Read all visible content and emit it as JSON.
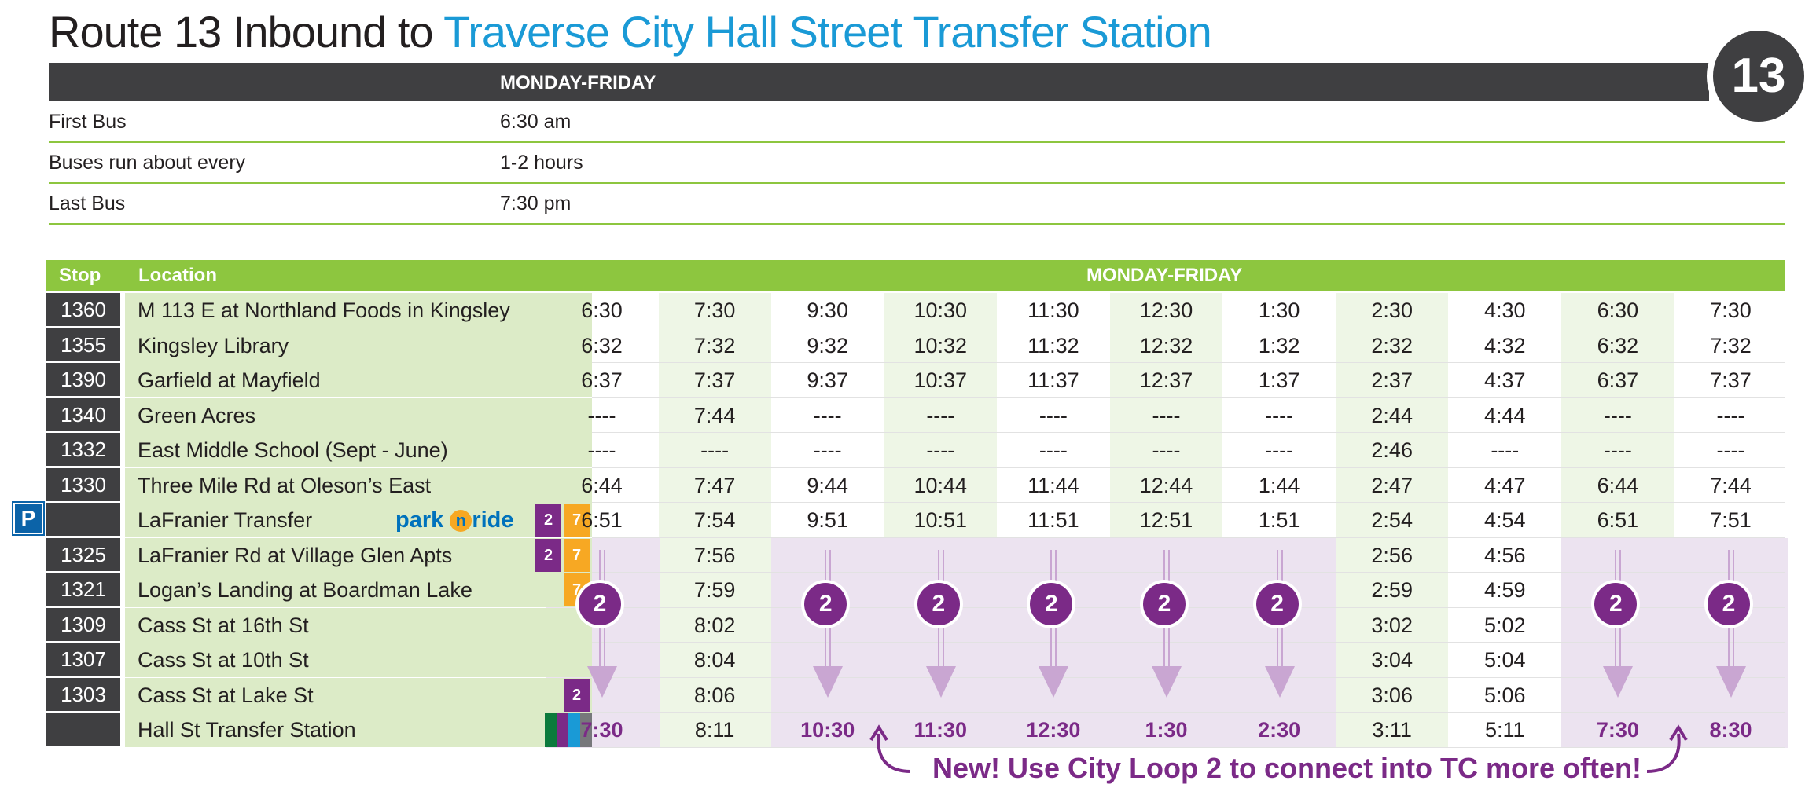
{
  "title": {
    "route": "Route 13 Inbound to ",
    "destination": "Traverse City Hall Street Transfer Station"
  },
  "route_badge": "13",
  "summary": {
    "header": "MONDAY-FRIDAY",
    "rows": [
      {
        "label": "First Bus",
        "value": "6:30 am"
      },
      {
        "label": "Buses run about every",
        "value": "1-2 hours"
      },
      {
        "label": "Last Bus",
        "value": "7:30 pm"
      }
    ]
  },
  "schedule": {
    "headers": {
      "stop": "Stop",
      "location": "Location",
      "days": "MONDAY-FRIDAY"
    },
    "parking_icon": "P",
    "park_n_ride_text": {
      "a": "park ",
      "o": "n",
      "b": "ride"
    },
    "loop_label": "2",
    "rows": [
      {
        "stop": "1360",
        "location": "M 113 E at Northland Foods in Kingsley",
        "times": [
          "6:30",
          "7:30",
          "9:30",
          "10:30",
          "11:30",
          "12:30",
          "1:30",
          "2:30",
          "4:30",
          "6:30",
          "7:30"
        ]
      },
      {
        "stop": "1355",
        "location": "Kingsley Library",
        "times": [
          "6:32",
          "7:32",
          "9:32",
          "10:32",
          "11:32",
          "12:32",
          "1:32",
          "2:32",
          "4:32",
          "6:32",
          "7:32"
        ]
      },
      {
        "stop": "1390",
        "location": "Garfield at Mayfield",
        "times": [
          "6:37",
          "7:37",
          "9:37",
          "10:37",
          "11:37",
          "12:37",
          "1:37",
          "2:37",
          "4:37",
          "6:37",
          "7:37"
        ]
      },
      {
        "stop": "1340",
        "location": "Green Acres",
        "times": [
          "----",
          "7:44",
          "----",
          "----",
          "----",
          "----",
          "----",
          "2:44",
          "4:44",
          "----",
          "----"
        ]
      },
      {
        "stop": "1332",
        "location": "East Middle School (Sept - June)",
        "times": [
          "----",
          "----",
          "----",
          "----",
          "----",
          "----",
          "----",
          "2:46",
          "----",
          "----",
          "----"
        ]
      },
      {
        "stop": "1330",
        "location": "Three Mile Rd at Oleson’s East",
        "times": [
          "6:44",
          "7:47",
          "9:44",
          "10:44",
          "11:44",
          "12:44",
          "1:44",
          "2:47",
          "4:47",
          "6:44",
          "7:44"
        ]
      },
      {
        "stop": "",
        "location": "LaFranier Transfer",
        "chips": [
          "2",
          "7"
        ],
        "times": [
          "6:51",
          "7:54",
          "9:51",
          "10:51",
          "11:51",
          "12:51",
          "1:51",
          "2:54",
          "4:54",
          "6:51",
          "7:51"
        ]
      },
      {
        "stop": "1325",
        "location": "LaFranier Rd at Village Glen Apts",
        "chips": [
          "2",
          "7"
        ],
        "times": [
          "",
          "7:56",
          "",
          "",
          "",
          "",
          "",
          "2:56",
          "4:56",
          "",
          ""
        ]
      },
      {
        "stop": "1321",
        "location": "Logan’s Landing at Boardman Lake",
        "chips": [
          "7"
        ],
        "times": [
          "",
          "7:59",
          "",
          "",
          "",
          "",
          "",
          "2:59",
          "4:59",
          "",
          ""
        ]
      },
      {
        "stop": "1309",
        "location": "Cass St at 16th St",
        "times": [
          "",
          "8:02",
          "",
          "",
          "",
          "",
          "",
          "3:02",
          "5:02",
          "",
          ""
        ]
      },
      {
        "stop": "1307",
        "location": "Cass St at 10th St",
        "times": [
          "",
          "8:04",
          "",
          "",
          "",
          "",
          "",
          "3:04",
          "5:04",
          "",
          ""
        ]
      },
      {
        "stop": "1303",
        "location": "Cass St at Lake St",
        "chips": [
          "2"
        ],
        "times": [
          "",
          "8:06",
          "",
          "",
          "",
          "",
          "",
          "3:06",
          "5:06",
          "",
          ""
        ]
      },
      {
        "stop": "",
        "location": "Hall St Transfer Station",
        "times": [
          "7:30",
          "8:11",
          "10:30",
          "11:30",
          "12:30",
          "1:30",
          "2:30",
          "3:11",
          "5:11",
          "7:30",
          "8:30"
        ]
      }
    ]
  },
  "note": "New! Use City Loop 2 to connect into TC more often!",
  "colors": {
    "accent_green": "#8dc63f",
    "title_blue": "#1a9ad6",
    "loop_purple": "#7b2a87",
    "route7_yellow": "#f7a823",
    "dark_gray": "#3f3f41"
  },
  "icons": [
    "parking-icon",
    "park-n-ride-logo",
    "loop-2-circle-icon",
    "down-arrow-icon",
    "curved-arrow-icon"
  ]
}
